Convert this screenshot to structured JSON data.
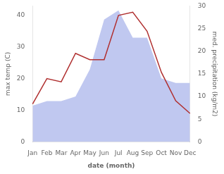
{
  "chart_data": {
    "type": "line",
    "xlabel": "date (month)",
    "ylabel": "max temp (C)",
    "y2label": "med. precipitation (kg/m2)",
    "categories": [
      "Jan",
      "Feb",
      "Mar",
      "Apr",
      "May",
      "Jun",
      "Jul",
      "Aug",
      "Sep",
      "Oct",
      "Nov",
      "Dec"
    ],
    "series": [
      {
        "color": "#b03030",
        "values": [
          12,
          20,
          19,
          28,
          26,
          26,
          40,
          41,
          35,
          22,
          13,
          9
        ]
      },
      {
        "type": "area",
        "axis": "y2",
        "color": "#c0c8f0",
        "values": [
          8,
          9,
          9,
          10,
          16,
          27,
          29,
          23,
          23,
          14,
          13,
          13
        ]
      }
    ],
    "ylim": [
      0,
      43
    ],
    "yticks": [
      0,
      10,
      20,
      30,
      40
    ],
    "y2lim": [
      0,
      30
    ],
    "y2ticks": [
      0,
      5,
      10,
      15,
      20,
      25,
      30
    ],
    "grid": false
  }
}
